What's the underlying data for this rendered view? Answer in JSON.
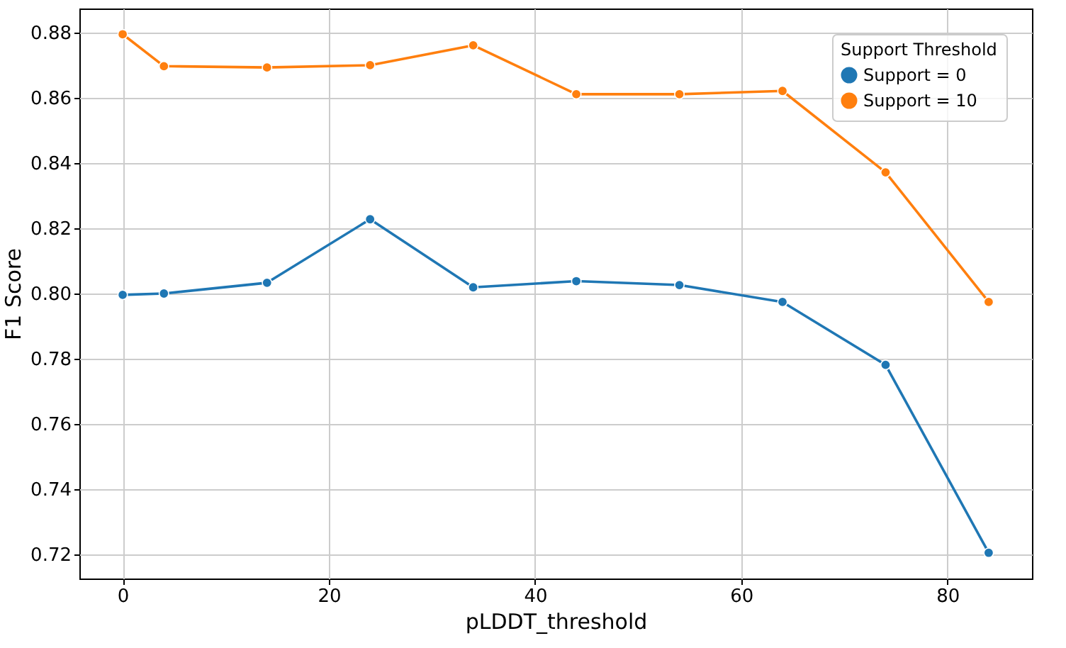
{
  "chart_data": {
    "type": "line",
    "xlabel": "pLDDT_threshold",
    "ylabel": "F1 Score",
    "legend_title": "Support Threshold",
    "x": [
      0,
      4,
      14,
      24,
      34,
      44,
      54,
      64,
      74,
      84
    ],
    "series": [
      {
        "name": "Support = 0",
        "color": "#1f77b4",
        "values": [
          0.7996,
          0.8,
          0.8033,
          0.8228,
          0.8019,
          0.8038,
          0.8026,
          0.7974,
          0.7781,
          0.7204
        ]
      },
      {
        "name": "Support = 10",
        "color": "#ff7f0e",
        "values": [
          0.8796,
          0.8698,
          0.8694,
          0.8701,
          0.8762,
          0.8612,
          0.8612,
          0.8622,
          0.8372,
          0.7974
        ]
      }
    ],
    "xlim": [
      -4.2,
      88.2
    ],
    "xticks": [
      0,
      20,
      40,
      60,
      80
    ],
    "ylim": [
      0.7125,
      0.8875
    ],
    "yticks": [
      0.72,
      0.74,
      0.76,
      0.78,
      {
        "value": 0.8,
        "label": "0.80"
      },
      0.82,
      0.84,
      0.86,
      0.88
    ],
    "grid": true,
    "legend": "top right",
    "marker": "circle",
    "line_style": "solid"
  }
}
